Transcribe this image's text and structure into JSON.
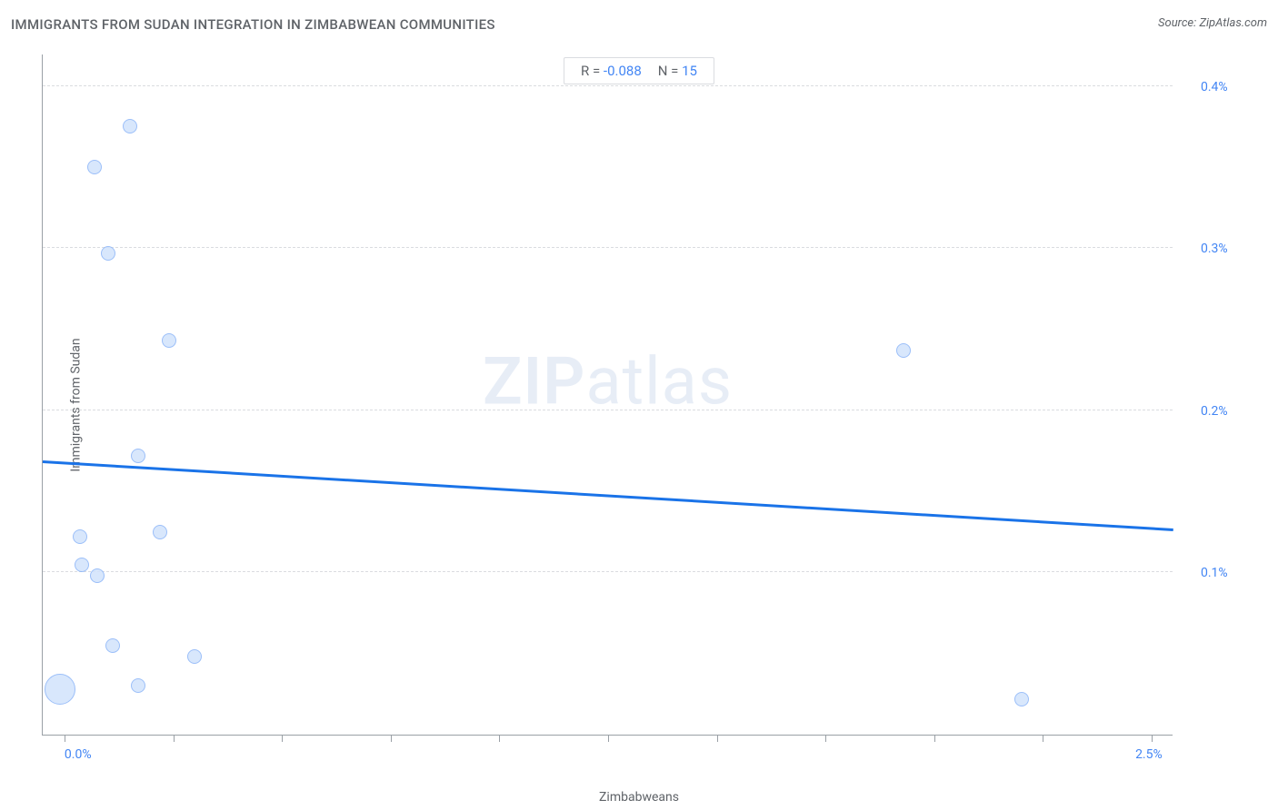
{
  "header": {
    "title": "IMMIGRANTS FROM SUDAN INTEGRATION IN ZIMBABWEAN COMMUNITIES",
    "source_prefix": "Source: ",
    "source_name": "ZipAtlas.com"
  },
  "stats": {
    "r_label": "R = ",
    "r_value": "-0.088",
    "n_label": "N = ",
    "n_value": "15"
  },
  "watermark": {
    "bold": "ZIP",
    "rest": "atlas"
  },
  "chart": {
    "type": "scatter",
    "x_axis_label": "Zimbabweans",
    "y_axis_label": "Immigrants from Sudan",
    "xlim": [
      -0.05,
      2.55
    ],
    "ylim": [
      0.0,
      0.42
    ],
    "x_ticks": [
      0.0,
      0.25,
      0.5,
      0.75,
      1.0,
      1.25,
      1.5,
      1.75,
      2.0,
      2.25,
      2.5
    ],
    "x_tick_labels": {
      "0": "0.0%",
      "2.5": "2.5%"
    },
    "y_gridlines": [
      0.1,
      0.2,
      0.3,
      0.4
    ],
    "y_tick_labels": {
      "0.1": "0.1%",
      "0.2": "0.2%",
      "0.3": "0.3%",
      "0.4": "0.4%"
    },
    "point_fill": "#d2e3fc",
    "point_stroke": "#8ab4f8",
    "point_opacity": 0.85,
    "grid_color": "#dadce0",
    "axis_color": "#9aa0a6",
    "trend_color": "#1a73e8",
    "background": "#ffffff",
    "points": [
      {
        "x": 0.15,
        "y": 0.375,
        "r": 8
      },
      {
        "x": 0.07,
        "y": 0.35,
        "r": 8
      },
      {
        "x": 0.1,
        "y": 0.297,
        "r": 8
      },
      {
        "x": 0.24,
        "y": 0.243,
        "r": 8
      },
      {
        "x": 1.93,
        "y": 0.237,
        "r": 8
      },
      {
        "x": 0.17,
        "y": 0.172,
        "r": 8
      },
      {
        "x": 0.22,
        "y": 0.125,
        "r": 8
      },
      {
        "x": 0.035,
        "y": 0.122,
        "r": 8
      },
      {
        "x": 0.04,
        "y": 0.105,
        "r": 8
      },
      {
        "x": 0.075,
        "y": 0.098,
        "r": 8
      },
      {
        "x": 0.11,
        "y": 0.055,
        "r": 8
      },
      {
        "x": 0.3,
        "y": 0.048,
        "r": 8
      },
      {
        "x": 0.17,
        "y": 0.03,
        "r": 8
      },
      {
        "x": 2.2,
        "y": 0.022,
        "r": 8
      },
      {
        "x": -0.01,
        "y": 0.028,
        "r": 17
      }
    ],
    "trend_line": {
      "x1": -0.05,
      "y1": 0.168,
      "x2": 2.55,
      "y2": 0.126
    }
  }
}
